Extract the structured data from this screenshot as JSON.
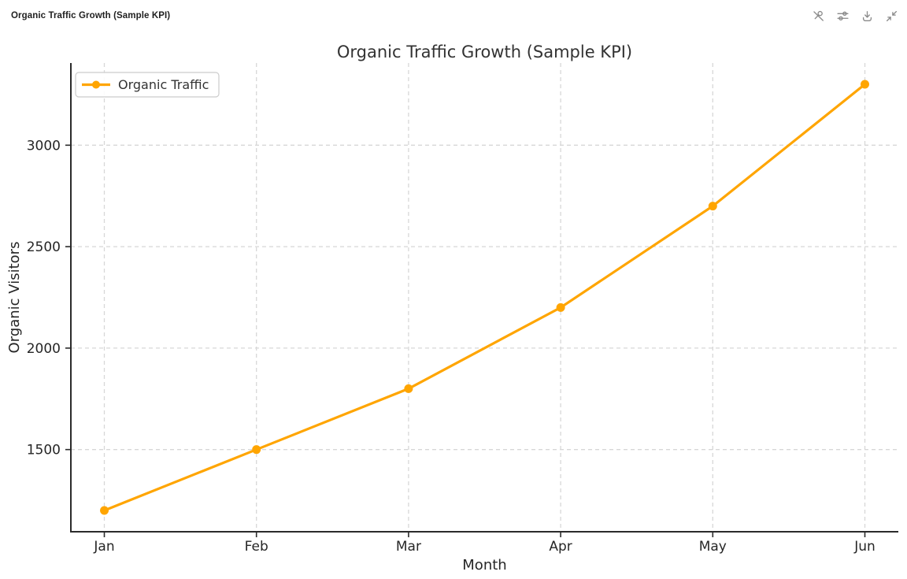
{
  "window": {
    "header_title": "Organic Traffic Growth (Sample KPI)",
    "toolbar_icons": [
      "unpin",
      "sliders",
      "download",
      "collapse"
    ]
  },
  "colors": {
    "series_orange": "#FFA500",
    "grid": "#d7d7d7",
    "spine": "#2b2b2b",
    "icon_gray": "#8a8a8a",
    "text_dark": "#262626"
  },
  "chart_data": {
    "type": "line",
    "title": "Organic Traffic Growth (Sample KPI)",
    "xlabel": "Month",
    "ylabel": "Organic Visitors",
    "categories": [
      "Jan",
      "Feb",
      "Mar",
      "Apr",
      "May",
      "Jun"
    ],
    "series": [
      {
        "name": "Organic Traffic",
        "values": [
          1200,
          1500,
          1800,
          2200,
          2700,
          3300
        ],
        "color": "#FFA500",
        "marker": "circle"
      }
    ],
    "yticks": [
      1500,
      2000,
      2500,
      3000
    ],
    "ylim": [
      1095,
      3405
    ],
    "xlim": [
      -0.22,
      5.22
    ],
    "grid": true,
    "grid_style": "dashed",
    "legend_position": "upper left",
    "legend_entries": [
      "Organic Traffic"
    ]
  }
}
